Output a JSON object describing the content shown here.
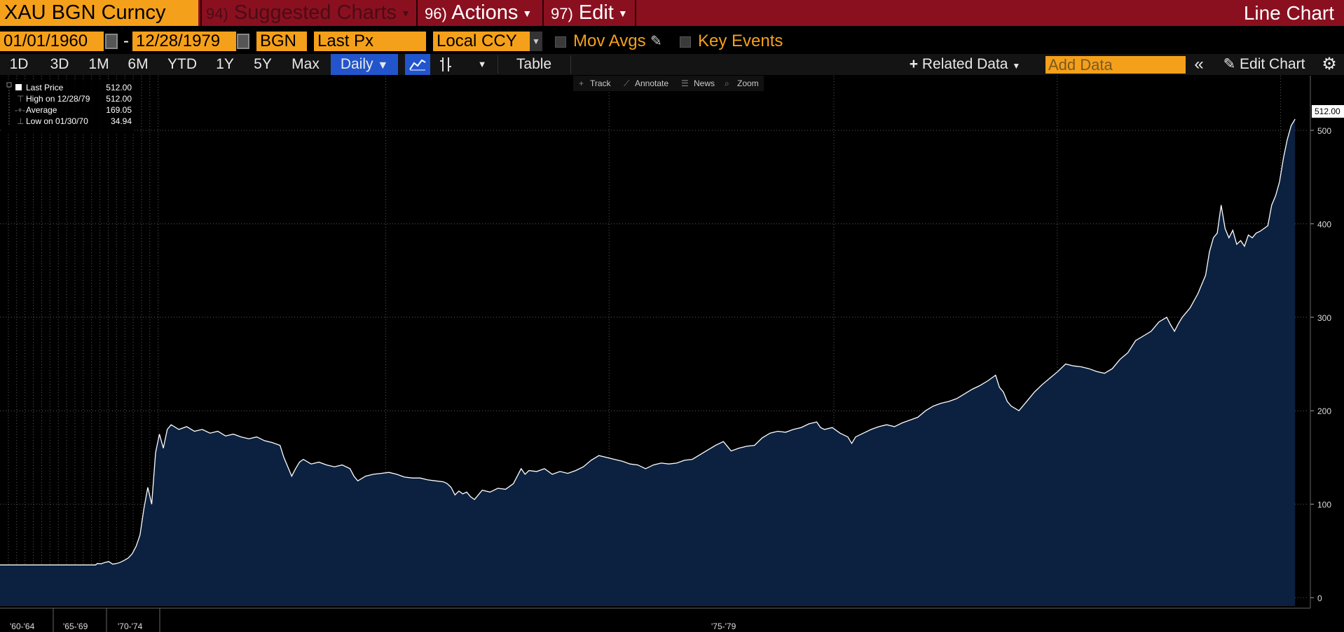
{
  "topbar": {
    "security": "XAU BGN Curncy",
    "suggested": {
      "num": "94)",
      "label": "Suggested Charts"
    },
    "actions": {
      "num": "96)",
      "label": "Actions"
    },
    "edit": {
      "num": "97)",
      "label": "Edit"
    },
    "chart_type": "Line Chart"
  },
  "controls": {
    "start_date": "01/01/1960",
    "date_sep": "-",
    "end_date": "12/28/1979",
    "source": "BGN",
    "field": "Last Px",
    "currency": "Local CCY",
    "mov_avgs": "Mov Avgs",
    "key_events": "Key Events"
  },
  "toolbar": {
    "periods": [
      "1D",
      "3D",
      "1M",
      "6M",
      "YTD",
      "1Y",
      "5Y",
      "Max"
    ],
    "frequency": "Daily",
    "table": "Table",
    "related_data": "Related Data",
    "add_data_placeholder": "Add Data",
    "edit_chart": "Edit Chart"
  },
  "chart_tools": [
    "Track",
    "Annotate",
    "News",
    "Zoom"
  ],
  "legend": {
    "last_price": {
      "label": "Last Price",
      "value": "512.00"
    },
    "high": {
      "label": "High on 12/28/79",
      "value": "512.00"
    },
    "average": {
      "label": "Average",
      "value": "169.05"
    },
    "low": {
      "label": "Low on 01/30/70",
      "value": "34.94"
    }
  },
  "colors": {
    "accent": "#f5a01a",
    "topbar": "#8a1020",
    "area": "#0c2140",
    "line": "#ffffff"
  },
  "chart_data": {
    "type": "area",
    "y_ticks": [
      0,
      100,
      200,
      300,
      400,
      500
    ],
    "ylim": [
      -10,
      520
    ],
    "last_value_label": "512.00",
    "x_period_labels": [
      "'60-'64",
      "'65-'69",
      "'70-'74",
      "'75-'79"
    ],
    "series": [
      {
        "values": [
          [
            0,
            35.0
          ],
          [
            0.123,
            35.0
          ],
          [
            0.125,
            36.5
          ],
          [
            0.13,
            36.2
          ],
          [
            0.135,
            37.8
          ],
          [
            0.14,
            38.5
          ],
          [
            0.145,
            35.8
          ],
          [
            0.15,
            36.5
          ],
          [
            0.155,
            38.0
          ],
          [
            0.16,
            40.0
          ],
          [
            0.165,
            42.5
          ],
          [
            0.17,
            47.0
          ],
          [
            0.175,
            55.0
          ],
          [
            0.18,
            67.0
          ],
          [
            0.185,
            95.0
          ],
          [
            0.19,
            118.0
          ],
          [
            0.195,
            100.0
          ],
          [
            0.2,
            155.0
          ],
          [
            0.205,
            175.0
          ],
          [
            0.21,
            160.0
          ],
          [
            0.215,
            180.0
          ],
          [
            0.22,
            185.0
          ],
          [
            0.23,
            180.0
          ],
          [
            0.24,
            183.0
          ],
          [
            0.25,
            178.0
          ],
          [
            0.26,
            180.0
          ],
          [
            0.27,
            176.0
          ],
          [
            0.28,
            178.0
          ],
          [
            0.29,
            173.0
          ],
          [
            0.3,
            175.0
          ],
          [
            0.31,
            172.0
          ],
          [
            0.32,
            170.0
          ],
          [
            0.33,
            172.0
          ],
          [
            0.34,
            168.0
          ],
          [
            0.35,
            166.0
          ],
          [
            0.36,
            163.0
          ],
          [
            0.365,
            150.0
          ],
          [
            0.37,
            140.0
          ],
          [
            0.375,
            130.0
          ],
          [
            0.38,
            138.0
          ],
          [
            0.385,
            145.0
          ],
          [
            0.39,
            148.0
          ],
          [
            0.4,
            143.0
          ],
          [
            0.41,
            145.0
          ],
          [
            0.42,
            142.0
          ],
          [
            0.43,
            140.0
          ],
          [
            0.44,
            142.0
          ],
          [
            0.45,
            138.0
          ],
          [
            0.455,
            130.0
          ],
          [
            0.46,
            125.0
          ],
          [
            0.47,
            130.0
          ],
          [
            0.48,
            132.0
          ],
          [
            0.49,
            133.0
          ],
          [
            0.5,
            134.0
          ],
          [
            0.51,
            132.0
          ],
          [
            0.52,
            129.0
          ],
          [
            0.53,
            128.0
          ],
          [
            0.54,
            128.0
          ],
          [
            0.55,
            126.0
          ],
          [
            0.56,
            125.0
          ],
          [
            0.57,
            124.0
          ],
          [
            0.575,
            122.0
          ],
          [
            0.58,
            118.0
          ],
          [
            0.585,
            110.0
          ],
          [
            0.59,
            114.0
          ],
          [
            0.595,
            111.0
          ],
          [
            0.6,
            113.0
          ],
          [
            0.605,
            108.0
          ],
          [
            0.61,
            105.0
          ],
          [
            0.615,
            110.0
          ],
          [
            0.62,
            115.0
          ],
          [
            0.63,
            113.0
          ],
          [
            0.64,
            117.0
          ],
          [
            0.65,
            116.0
          ],
          [
            0.66,
            122.0
          ],
          [
            0.665,
            130.0
          ],
          [
            0.67,
            138.0
          ],
          [
            0.675,
            132.0
          ],
          [
            0.68,
            136.0
          ],
          [
            0.69,
            135.0
          ],
          [
            0.7,
            138.0
          ],
          [
            0.71,
            132.0
          ],
          [
            0.72,
            135.0
          ],
          [
            0.73,
            133.0
          ],
          [
            0.74,
            136.0
          ],
          [
            0.75,
            140.0
          ],
          [
            0.76,
            147.0
          ],
          [
            0.77,
            152.0
          ],
          [
            0.78,
            150.0
          ],
          [
            0.79,
            148.0
          ],
          [
            0.8,
            146.0
          ],
          [
            0.81,
            143.0
          ],
          [
            0.82,
            142.0
          ],
          [
            0.83,
            138.0
          ],
          [
            0.84,
            142.0
          ],
          [
            0.85,
            144.0
          ],
          [
            0.86,
            143.0
          ],
          [
            0.87,
            144.0
          ],
          [
            0.88,
            147.0
          ],
          [
            0.89,
            148.0
          ],
          [
            0.9,
            153.0
          ],
          [
            0.91,
            158.0
          ],
          [
            0.92,
            163.0
          ],
          [
            0.93,
            167.0
          ],
          [
            0.935,
            162.0
          ],
          [
            0.94,
            157.0
          ],
          [
            0.95,
            160.0
          ],
          [
            0.96,
            162.0
          ],
          [
            0.97,
            163.0
          ],
          [
            0.98,
            171.0
          ],
          [
            0.99,
            176.0
          ],
          [
            1.0,
            178.0
          ],
          [
            1.01,
            177.0
          ],
          [
            1.02,
            180.0
          ],
          [
            1.03,
            182.0
          ],
          [
            1.04,
            186.0
          ],
          [
            1.05,
            188.0
          ],
          [
            1.055,
            182.0
          ],
          [
            1.06,
            180.0
          ],
          [
            1.07,
            182.0
          ],
          [
            1.08,
            176.0
          ],
          [
            1.09,
            172.0
          ],
          [
            1.095,
            165.0
          ],
          [
            1.1,
            172.0
          ],
          [
            1.11,
            176.0
          ],
          [
            1.12,
            180.0
          ],
          [
            1.13,
            183.0
          ],
          [
            1.14,
            185.0
          ],
          [
            1.15,
            183.0
          ],
          [
            1.16,
            187.0
          ],
          [
            1.17,
            190.0
          ],
          [
            1.18,
            193.0
          ],
          [
            1.19,
            200.0
          ],
          [
            1.2,
            205.0
          ],
          [
            1.21,
            208.0
          ],
          [
            1.22,
            210.0
          ],
          [
            1.23,
            213.0
          ],
          [
            1.24,
            218.0
          ],
          [
            1.25,
            223.0
          ],
          [
            1.26,
            227.0
          ],
          [
            1.27,
            232.0
          ],
          [
            1.28,
            238.0
          ],
          [
            1.285,
            225.0
          ],
          [
            1.29,
            220.0
          ],
          [
            1.295,
            210.0
          ],
          [
            1.3,
            205.0
          ],
          [
            1.31,
            200.0
          ],
          [
            1.32,
            210.0
          ],
          [
            1.33,
            220.0
          ],
          [
            1.34,
            228.0
          ],
          [
            1.35,
            235.0
          ],
          [
            1.36,
            242.0
          ],
          [
            1.37,
            250.0
          ],
          [
            1.38,
            248.0
          ],
          [
            1.39,
            247.0
          ],
          [
            1.4,
            245.0
          ],
          [
            1.41,
            242.0
          ],
          [
            1.42,
            240.0
          ],
          [
            1.43,
            245.0
          ],
          [
            1.44,
            255.0
          ],
          [
            1.45,
            262.0
          ],
          [
            1.46,
            275.0
          ],
          [
            1.47,
            280.0
          ],
          [
            1.48,
            285.0
          ],
          [
            1.49,
            295.0
          ],
          [
            1.5,
            300.0
          ],
          [
            1.505,
            292.0
          ],
          [
            1.51,
            285.0
          ],
          [
            1.515,
            293.0
          ],
          [
            1.52,
            300.0
          ],
          [
            1.53,
            310.0
          ],
          [
            1.54,
            325.0
          ],
          [
            1.55,
            345.0
          ],
          [
            1.555,
            370.0
          ],
          [
            1.56,
            385.0
          ],
          [
            1.565,
            390.0
          ],
          [
            1.57,
            420.0
          ],
          [
            1.575,
            395.0
          ],
          [
            1.58,
            385.0
          ],
          [
            1.585,
            393.0
          ],
          [
            1.59,
            378.0
          ],
          [
            1.595,
            382.0
          ],
          [
            1.6,
            376.0
          ],
          [
            1.605,
            388.0
          ],
          [
            1.61,
            385.0
          ],
          [
            1.615,
            390.0
          ],
          [
            1.62,
            392.0
          ],
          [
            1.625,
            395.0
          ],
          [
            1.63,
            398.0
          ],
          [
            1.635,
            420.0
          ],
          [
            1.64,
            430.0
          ],
          [
            1.645,
            445.0
          ],
          [
            1.65,
            470.0
          ],
          [
            1.655,
            490.0
          ],
          [
            1.66,
            505.0
          ],
          [
            1.665,
            512.0
          ]
        ]
      }
    ]
  }
}
